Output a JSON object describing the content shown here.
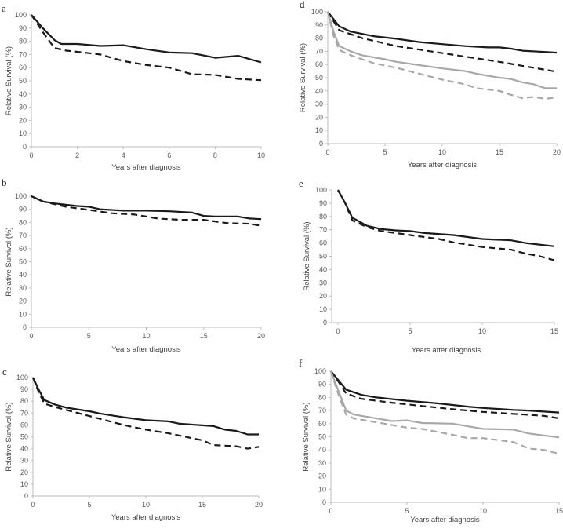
{
  "colors": {
    "black": "#1a1a1a",
    "gray": "#a8a8a8",
    "axis": "#bdbdbd"
  },
  "chart_data": [
    {
      "type": "line",
      "panel": "a",
      "xlabel": "Years after diagnosis",
      "ylabel": "Relative Survival (%)",
      "xlim": [
        0,
        10
      ],
      "ylim": [
        0,
        100
      ],
      "xticks": [
        0,
        2,
        4,
        6,
        8,
        10
      ],
      "yticks": [
        0,
        10,
        20,
        30,
        40,
        50,
        60,
        70,
        80,
        90,
        100
      ],
      "series": [
        {
          "name": "solid-black",
          "color": "black",
          "dash": false,
          "points": [
            [
              0,
              100
            ],
            [
              0.5,
              90
            ],
            [
              1,
              81
            ],
            [
              1.3,
              78
            ],
            [
              2,
              78
            ],
            [
              3,
              76.5
            ],
            [
              4,
              77
            ],
            [
              5,
              74
            ],
            [
              6,
              71.5
            ],
            [
              7,
              71
            ],
            [
              8,
              67.5
            ],
            [
              9,
              69
            ],
            [
              10,
              64
            ]
          ]
        },
        {
          "name": "dashed-black",
          "color": "black",
          "dash": true,
          "points": [
            [
              0,
              100
            ],
            [
              0.5,
              87
            ],
            [
              1,
              75
            ],
            [
              1.5,
              73
            ],
            [
              2,
              72
            ],
            [
              3,
              70
            ],
            [
              4,
              65
            ],
            [
              5,
              62
            ],
            [
              6,
              60
            ],
            [
              7,
              55
            ],
            [
              8,
              54.5
            ],
            [
              9,
              51.5
            ],
            [
              10,
              50.5
            ]
          ]
        }
      ]
    },
    {
      "type": "line",
      "panel": "b",
      "xlabel": "Years after diagnosis",
      "ylabel": "Relative Survival (%)",
      "xlim": [
        0,
        20
      ],
      "ylim": [
        0,
        100
      ],
      "xticks": [
        0,
        5,
        10,
        15,
        20
      ],
      "yticks": [
        0,
        10,
        20,
        30,
        40,
        50,
        60,
        70,
        80,
        90,
        100
      ],
      "series": [
        {
          "name": "solid-black",
          "color": "black",
          "dash": false,
          "points": [
            [
              0,
              100
            ],
            [
              1,
              96
            ],
            [
              2,
              94.5
            ],
            [
              3,
              93.5
            ],
            [
              4,
              92.5
            ],
            [
              5,
              92
            ],
            [
              6,
              90
            ],
            [
              8,
              89
            ],
            [
              10,
              89
            ],
            [
              12,
              88.5
            ],
            [
              14,
              87.5
            ],
            [
              15,
              85
            ],
            [
              16,
              84.5
            ],
            [
              18,
              84.5
            ],
            [
              19,
              83
            ],
            [
              20,
              82.5
            ]
          ]
        },
        {
          "name": "dashed-black",
          "color": "black",
          "dash": true,
          "points": [
            [
              0,
              100
            ],
            [
              1,
              96
            ],
            [
              2,
              94
            ],
            [
              3,
              92
            ],
            [
              5,
              89.5
            ],
            [
              7,
              87
            ],
            [
              9,
              86
            ],
            [
              11,
              83
            ],
            [
              13,
              82
            ],
            [
              15,
              82
            ],
            [
              17,
              79.5
            ],
            [
              19,
              79
            ],
            [
              20,
              77.5
            ]
          ]
        }
      ]
    },
    {
      "type": "line",
      "panel": "c",
      "xlabel": "Years after diagnosis",
      "ylabel": "Relative Survival (%)",
      "xlim": [
        0,
        20
      ],
      "ylim": [
        0,
        100
      ],
      "xticks": [
        0,
        5,
        10,
        15,
        20
      ],
      "yticks": [
        0,
        10,
        20,
        30,
        40,
        50,
        60,
        70,
        80,
        90,
        100
      ],
      "series": [
        {
          "name": "solid-black",
          "color": "black",
          "dash": false,
          "points": [
            [
              0,
              100
            ],
            [
              0.5,
              90
            ],
            [
              1,
              81
            ],
            [
              2,
              77
            ],
            [
              3,
              74.5
            ],
            [
              5,
              71.5
            ],
            [
              6,
              69.5
            ],
            [
              8,
              66.5
            ],
            [
              10,
              64
            ],
            [
              12,
              63
            ],
            [
              13,
              61
            ],
            [
              16,
              59
            ],
            [
              17,
              56
            ],
            [
              18,
              55
            ],
            [
              19,
              52
            ],
            [
              20,
              52
            ]
          ]
        },
        {
          "name": "dashed-black",
          "color": "black",
          "dash": true,
          "points": [
            [
              0,
              100
            ],
            [
              0.5,
              88
            ],
            [
              1,
              78
            ],
            [
              2,
              75
            ],
            [
              4,
              70
            ],
            [
              6,
              65
            ],
            [
              8,
              60
            ],
            [
              10,
              56
            ],
            [
              12,
              53
            ],
            [
              14,
              49
            ],
            [
              15,
              47
            ],
            [
              16,
              43
            ],
            [
              18,
              42
            ],
            [
              19,
              40
            ],
            [
              20,
              41.5
            ]
          ]
        }
      ]
    },
    {
      "type": "line",
      "panel": "d",
      "xlabel": "Years after diagnosis",
      "ylabel": "Relative Survival (%)",
      "xlim": [
        0,
        20
      ],
      "ylim": [
        0,
        100
      ],
      "xticks": [
        0,
        5,
        10,
        15,
        20
      ],
      "yticks": [
        0,
        10,
        20,
        30,
        40,
        50,
        60,
        70,
        80,
        90,
        100
      ],
      "series": [
        {
          "name": "solid-black",
          "color": "black",
          "dash": false,
          "points": [
            [
              0,
              100
            ],
            [
              1,
              89
            ],
            [
              2,
              85
            ],
            [
              4,
              81.5
            ],
            [
              6,
              79.5
            ],
            [
              8,
              77
            ],
            [
              10,
              75.5
            ],
            [
              12,
              74
            ],
            [
              14,
              73
            ],
            [
              15,
              73
            ],
            [
              16,
              72
            ],
            [
              17,
              70.5
            ],
            [
              19,
              69.5
            ],
            [
              20,
              69
            ]
          ]
        },
        {
          "name": "dashed-black",
          "color": "black",
          "dash": true,
          "points": [
            [
              0,
              100
            ],
            [
              1,
              86
            ],
            [
              3,
              80
            ],
            [
              6,
              74
            ],
            [
              9,
              70
            ],
            [
              12,
              66
            ],
            [
              15,
              62
            ],
            [
              17,
              59
            ],
            [
              19,
              56
            ],
            [
              20,
              54.5
            ]
          ]
        },
        {
          "name": "solid-gray",
          "color": "gray",
          "dash": false,
          "points": [
            [
              0,
              100
            ],
            [
              0.5,
              85
            ],
            [
              1,
              74
            ],
            [
              2,
              70
            ],
            [
              3,
              67
            ],
            [
              5,
              64
            ],
            [
              6,
              62
            ],
            [
              8,
              59.5
            ],
            [
              10,
              57
            ],
            [
              12,
              55
            ],
            [
              13,
              53
            ],
            [
              15,
              50
            ],
            [
              16,
              49
            ],
            [
              17,
              46.5
            ],
            [
              18,
              45
            ],
            [
              19,
              42
            ],
            [
              20,
              42
            ]
          ]
        },
        {
          "name": "dashed-gray",
          "color": "gray",
          "dash": true,
          "points": [
            [
              0,
              100
            ],
            [
              0.5,
              82
            ],
            [
              1,
              71
            ],
            [
              2,
              67
            ],
            [
              4,
              61
            ],
            [
              6,
              57.5
            ],
            [
              8,
              53
            ],
            [
              10,
              48.5
            ],
            [
              12,
              45
            ],
            [
              13,
              42
            ],
            [
              15,
              40
            ],
            [
              16,
              37
            ],
            [
              17,
              34.5
            ],
            [
              18,
              35.5
            ],
            [
              19,
              34
            ],
            [
              20,
              35
            ]
          ]
        }
      ]
    },
    {
      "type": "line",
      "panel": "e",
      "xlabel": "Years after diagnosis",
      "ylabel": "Relative Survival (%)",
      "xlim": [
        0,
        15
      ],
      "ylim": [
        0,
        100
      ],
      "xticks": [
        0,
        5,
        10,
        15
      ],
      "yticks": [
        0,
        10,
        20,
        30,
        40,
        50,
        60,
        70,
        80,
        90,
        100
      ],
      "series": [
        {
          "name": "solid-black",
          "color": "black",
          "dash": false,
          "points": [
            [
              0,
              100
            ],
            [
              0.5,
              90
            ],
            [
              1,
              79
            ],
            [
              2,
              73
            ],
            [
              3,
              70.5
            ],
            [
              4,
              69.5
            ],
            [
              5,
              69
            ],
            [
              6,
              67.5
            ],
            [
              8,
              66
            ],
            [
              10,
              63
            ],
            [
              12,
              62
            ],
            [
              13,
              60
            ],
            [
              15,
              57.5
            ]
          ]
        },
        {
          "name": "dashed-black",
          "color": "black",
          "dash": true,
          "points": [
            [
              0,
              100
            ],
            [
              0.5,
              90
            ],
            [
              1,
              77
            ],
            [
              2,
              72
            ],
            [
              3,
              69
            ],
            [
              5,
              66
            ],
            [
              7,
              63
            ],
            [
              8,
              60.5
            ],
            [
              10,
              57
            ],
            [
              12,
              55
            ],
            [
              13,
              52
            ],
            [
              14,
              50
            ],
            [
              15,
              47
            ]
          ]
        }
      ]
    },
    {
      "type": "line",
      "panel": "f",
      "xlabel": "Years after diagnosis",
      "ylabel": "Relative Survival (%)",
      "xlim": [
        0,
        15
      ],
      "ylim": [
        0,
        100
      ],
      "xticks": [
        0,
        5,
        10,
        15
      ],
      "yticks": [
        0,
        10,
        20,
        30,
        40,
        50,
        60,
        70,
        80,
        90,
        100
      ],
      "series": [
        {
          "name": "solid-black",
          "color": "black",
          "dash": false,
          "points": [
            [
              0,
              100
            ],
            [
              0.5,
              93
            ],
            [
              1,
              86
            ],
            [
              2,
              82
            ],
            [
              3,
              80
            ],
            [
              5,
              77.5
            ],
            [
              7,
              75.5
            ],
            [
              9,
              73
            ],
            [
              10,
              72
            ],
            [
              12,
              70.5
            ],
            [
              13,
              70
            ],
            [
              15,
              68.5
            ]
          ]
        },
        {
          "name": "dashed-black",
          "color": "black",
          "dash": true,
          "points": [
            [
              0,
              100
            ],
            [
              0.5,
              92
            ],
            [
              1,
              83
            ],
            [
              2,
              79
            ],
            [
              4,
              76
            ],
            [
              6,
              73.5
            ],
            [
              8,
              71
            ],
            [
              10,
              69
            ],
            [
              12,
              67.5
            ],
            [
              14,
              66
            ],
            [
              15,
              64
            ]
          ]
        },
        {
          "name": "solid-gray",
          "color": "gray",
          "dash": false,
          "points": [
            [
              0,
              100
            ],
            [
              0.5,
              85
            ],
            [
              1,
              70
            ],
            [
              1.5,
              67
            ],
            [
              2,
              66
            ],
            [
              3,
              64
            ],
            [
              4,
              62
            ],
            [
              5,
              62.5
            ],
            [
              6,
              60.5
            ],
            [
              8,
              60
            ],
            [
              9,
              58
            ],
            [
              10,
              56
            ],
            [
              12,
              55.5
            ],
            [
              13,
              52.5
            ],
            [
              15,
              49.5
            ]
          ]
        },
        {
          "name": "dashed-gray",
          "color": "gray",
          "dash": true,
          "points": [
            [
              0,
              100
            ],
            [
              0.5,
              82
            ],
            [
              1,
              67
            ],
            [
              1.5,
              64
            ],
            [
              3,
              61
            ],
            [
              5,
              57
            ],
            [
              6,
              56
            ],
            [
              8,
              51.5
            ],
            [
              9,
              49
            ],
            [
              10,
              49
            ],
            [
              12,
              46
            ],
            [
              13,
              41
            ],
            [
              14,
              40
            ],
            [
              15,
              37
            ]
          ]
        }
      ]
    }
  ]
}
